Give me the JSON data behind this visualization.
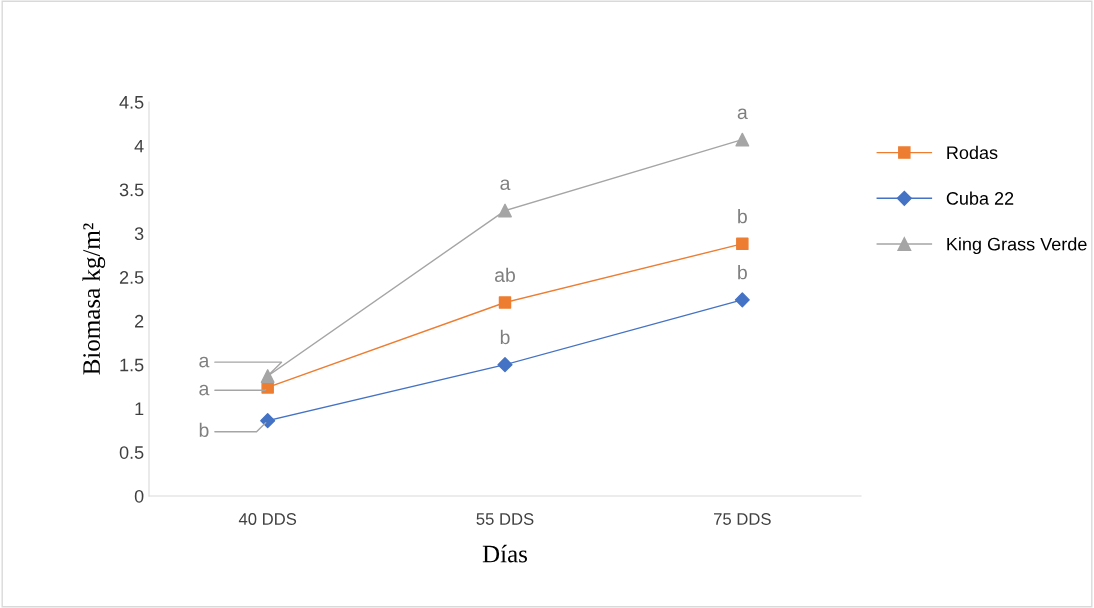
{
  "chart_data": {
    "type": "line",
    "xlabel": "Días",
    "ylabel": "Biomasa kg/m²",
    "categories": [
      "40 DDS",
      "55 DDS",
      "75 DDS"
    ],
    "series": [
      {
        "name": "Rodas",
        "color": "#ed7d31",
        "marker": "square",
        "values": [
          1.24,
          2.21,
          2.88
        ]
      },
      {
        "name": "Cuba 22",
        "color": "#4472c4",
        "marker": "diamond",
        "values": [
          0.86,
          1.5,
          2.24
        ]
      },
      {
        "name": "King Grass Verde",
        "color": "#a5a5a5",
        "marker": "triangle",
        "values": [
          1.37,
          3.26,
          4.07
        ]
      }
    ],
    "ylim": [
      0,
      4.5
    ],
    "yticks": [
      0,
      0.5,
      1,
      1.5,
      2,
      2.5,
      3,
      3.5,
      4,
      4.5
    ],
    "grid": false,
    "legend": "right",
    "annotations": [
      {
        "text": "a",
        "x": "40 DDS",
        "y": 1.24
      },
      {
        "text": "ab",
        "x": "55 DDS",
        "y": 2.21
      },
      {
        "text": "b",
        "x": "75 DDS",
        "y": 2.88
      },
      {
        "text": "b",
        "x": "40 DDS",
        "y": 0.86
      },
      {
        "text": "b",
        "x": "55 DDS",
        "y": 1.5
      },
      {
        "text": "b",
        "x": "75 DDS",
        "y": 2.24
      },
      {
        "text": "a",
        "x": "40 DDS",
        "y": 1.37
      },
      {
        "text": "a",
        "x": "55 DDS",
        "y": 3.26
      },
      {
        "text": "a",
        "x": "75 DDS",
        "y": 4.07
      }
    ]
  }
}
